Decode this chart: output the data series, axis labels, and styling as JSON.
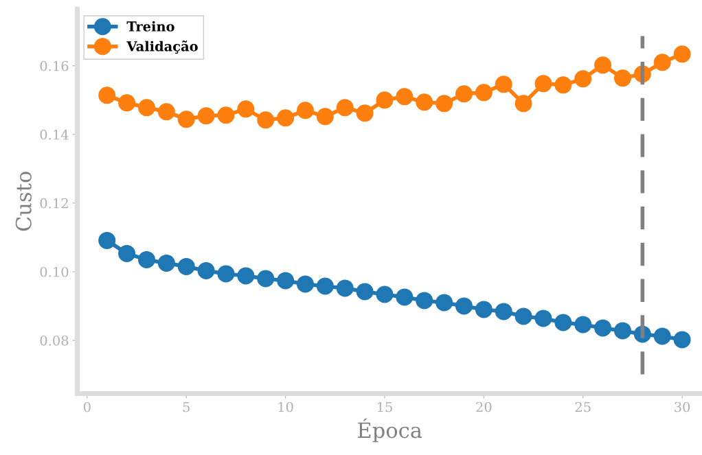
{
  "chart_data": {
    "type": "line",
    "xlabel": "Época",
    "ylabel": "Custo",
    "x": [
      1,
      2,
      3,
      4,
      5,
      6,
      7,
      8,
      9,
      10,
      11,
      12,
      13,
      14,
      15,
      16,
      17,
      18,
      19,
      20,
      21,
      22,
      23,
      24,
      25,
      26,
      27,
      28,
      29,
      30
    ],
    "series": [
      {
        "name": "Treino",
        "color": "#1f77b4",
        "values": [
          0.1091,
          0.1053,
          0.1035,
          0.1025,
          0.1015,
          0.1003,
          0.0994,
          0.0988,
          0.098,
          0.0974,
          0.0964,
          0.0958,
          0.0952,
          0.0942,
          0.0934,
          0.0926,
          0.0916,
          0.091,
          0.09,
          0.089,
          0.0884,
          0.087,
          0.0864,
          0.0852,
          0.0846,
          0.0836,
          0.0828,
          0.0818,
          0.0812,
          0.0802
        ]
      },
      {
        "name": "Validação",
        "color": "#ff7f0e",
        "values": [
          0.1514,
          0.1492,
          0.1478,
          0.1466,
          0.1444,
          0.1454,
          0.1456,
          0.1474,
          0.1442,
          0.1448,
          0.147,
          0.1452,
          0.1478,
          0.1462,
          0.15,
          0.151,
          0.1494,
          0.149,
          0.1518,
          0.1522,
          0.1546,
          0.149,
          0.1548,
          0.1544,
          0.1562,
          0.1602,
          0.1564,
          0.1576,
          0.161,
          0.1634
        ]
      }
    ],
    "xlim": [
      -0.5,
      31
    ],
    "xticks": [
      0,
      5,
      10,
      15,
      20,
      25,
      30
    ],
    "ylim": [
      0.0645,
      0.1765
    ],
    "yticks": [
      {
        "value": 0.08,
        "label": "0.08"
      },
      {
        "value": 0.1,
        "label": "0.10"
      },
      {
        "value": 0.12,
        "label": "0.12"
      },
      {
        "value": 0.14,
        "label": "0.14"
      },
      {
        "value": 0.16,
        "label": "0.16"
      }
    ],
    "ref_lines": [
      {
        "axis": "x",
        "value": 28,
        "color": "#808080",
        "line_style": "dashed"
      }
    ],
    "marker": "circle",
    "line_style": "solid",
    "grid": false,
    "legend": "top left"
  }
}
